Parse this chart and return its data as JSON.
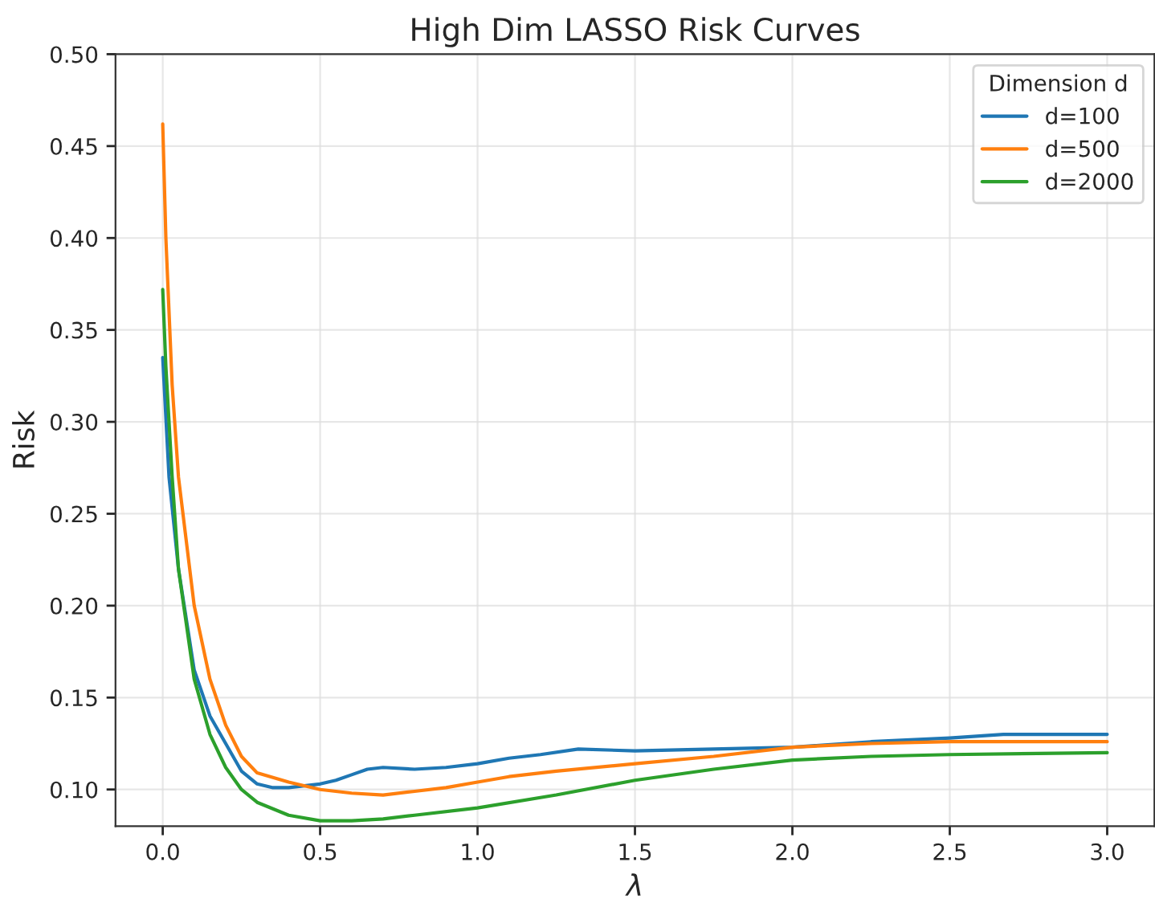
{
  "chart_data": {
    "type": "line",
    "title": "High Dim LASSO Risk Curves",
    "xlabel": "λ",
    "ylabel": "Risk",
    "legend_title": "Dimension d",
    "xlim": [
      -0.15,
      3.15
    ],
    "ylim": [
      0.08,
      0.5
    ],
    "xticks": [
      {
        "value": 0,
        "label": "0.0"
      },
      {
        "value": 0.5,
        "label": "0.5"
      },
      {
        "value": 1,
        "label": "1.0"
      },
      {
        "value": 1.5,
        "label": "1.5"
      },
      {
        "value": 2,
        "label": "2.0"
      },
      {
        "value": 2.5,
        "label": "2.5"
      },
      {
        "value": 3,
        "label": "3.0"
      }
    ],
    "yticks": [
      {
        "value": 0.1,
        "label": "0.10"
      },
      {
        "value": 0.15,
        "label": "0.15"
      },
      {
        "value": 0.2,
        "label": "0.20"
      },
      {
        "value": 0.25,
        "label": "0.25"
      },
      {
        "value": 0.3,
        "label": "0.30"
      },
      {
        "value": 0.35,
        "label": "0.35"
      },
      {
        "value": 0.4,
        "label": "0.40"
      },
      {
        "value": 0.45,
        "label": "0.45"
      },
      {
        "value": 0.5,
        "label": "0.50"
      }
    ],
    "grid": true,
    "legend": "top right",
    "series": [
      {
        "name": "d=100",
        "color": "#1f77b4",
        "x": [
          0,
          0.02,
          0.05,
          0.1,
          0.15,
          0.2,
          0.25,
          0.3,
          0.35,
          0.4,
          0.45,
          0.5,
          0.55,
          0.6,
          0.65,
          0.7,
          0.8,
          0.9,
          1.0,
          1.1,
          1.2,
          1.32,
          1.5,
          1.75,
          2.0,
          2.25,
          2.5,
          2.67,
          3.0
        ],
        "values": [
          0.335,
          0.27,
          0.22,
          0.165,
          0.14,
          0.125,
          0.11,
          0.103,
          0.101,
          0.101,
          0.102,
          0.103,
          0.105,
          0.108,
          0.111,
          0.112,
          0.111,
          0.112,
          0.114,
          0.117,
          0.119,
          0.122,
          0.121,
          0.122,
          0.123,
          0.126,
          0.128,
          0.13,
          0.13
        ]
      },
      {
        "name": "d=500",
        "color": "#ff7f0e",
        "x": [
          0,
          0.01,
          0.03,
          0.05,
          0.1,
          0.15,
          0.2,
          0.25,
          0.3,
          0.4,
          0.5,
          0.6,
          0.7,
          0.8,
          0.9,
          1.0,
          1.1,
          1.25,
          1.5,
          1.75,
          2.0,
          2.25,
          2.5,
          3.0
        ],
        "values": [
          0.462,
          0.4,
          0.32,
          0.27,
          0.2,
          0.16,
          0.135,
          0.118,
          0.109,
          0.104,
          0.1,
          0.098,
          0.097,
          0.099,
          0.101,
          0.104,
          0.107,
          0.11,
          0.114,
          0.118,
          0.123,
          0.125,
          0.126,
          0.126
        ]
      },
      {
        "name": "d=2000",
        "color": "#2ca02c",
        "x": [
          0,
          0.01,
          0.03,
          0.05,
          0.1,
          0.15,
          0.2,
          0.25,
          0.3,
          0.4,
          0.5,
          0.6,
          0.7,
          0.8,
          1.0,
          1.25,
          1.5,
          1.75,
          2.0,
          2.25,
          2.5,
          3.0
        ],
        "values": [
          0.372,
          0.33,
          0.27,
          0.22,
          0.16,
          0.13,
          0.112,
          0.1,
          0.093,
          0.086,
          0.083,
          0.083,
          0.084,
          0.086,
          0.09,
          0.097,
          0.105,
          0.111,
          0.116,
          0.118,
          0.119,
          0.12
        ]
      }
    ]
  }
}
